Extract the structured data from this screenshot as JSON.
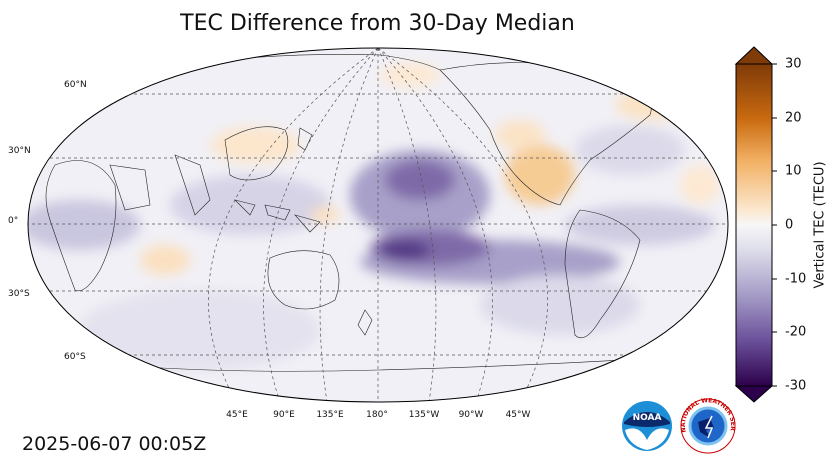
{
  "title": "TEC Difference from 30-Day Median",
  "timestamp": "2025-06-07 00:05Z",
  "latitude_labels": [
    "60°N",
    "30°N",
    "0°",
    "30°S",
    "60°S"
  ],
  "longitude_labels": [
    "45°E",
    "90°E",
    "135°E",
    "180°",
    "135°W",
    "90°W",
    "45°W"
  ],
  "colorbar": {
    "label": "Vertical TEC (TECU)",
    "ticks": [
      "30",
      "20",
      "10",
      "0",
      "-10",
      "-20",
      "-30"
    ],
    "range": [
      -30,
      30
    ],
    "colors": {
      "negative_extreme": "#3a0b5a",
      "negative": "#7f6aa8",
      "neutral": "#f7f7f7",
      "positive": "#e8953a",
      "positive_extreme": "#7f3b08"
    }
  },
  "logos": {
    "noaa_text": "NOAA",
    "nws_text": "NATIONAL WEATHER SERVICE"
  }
}
